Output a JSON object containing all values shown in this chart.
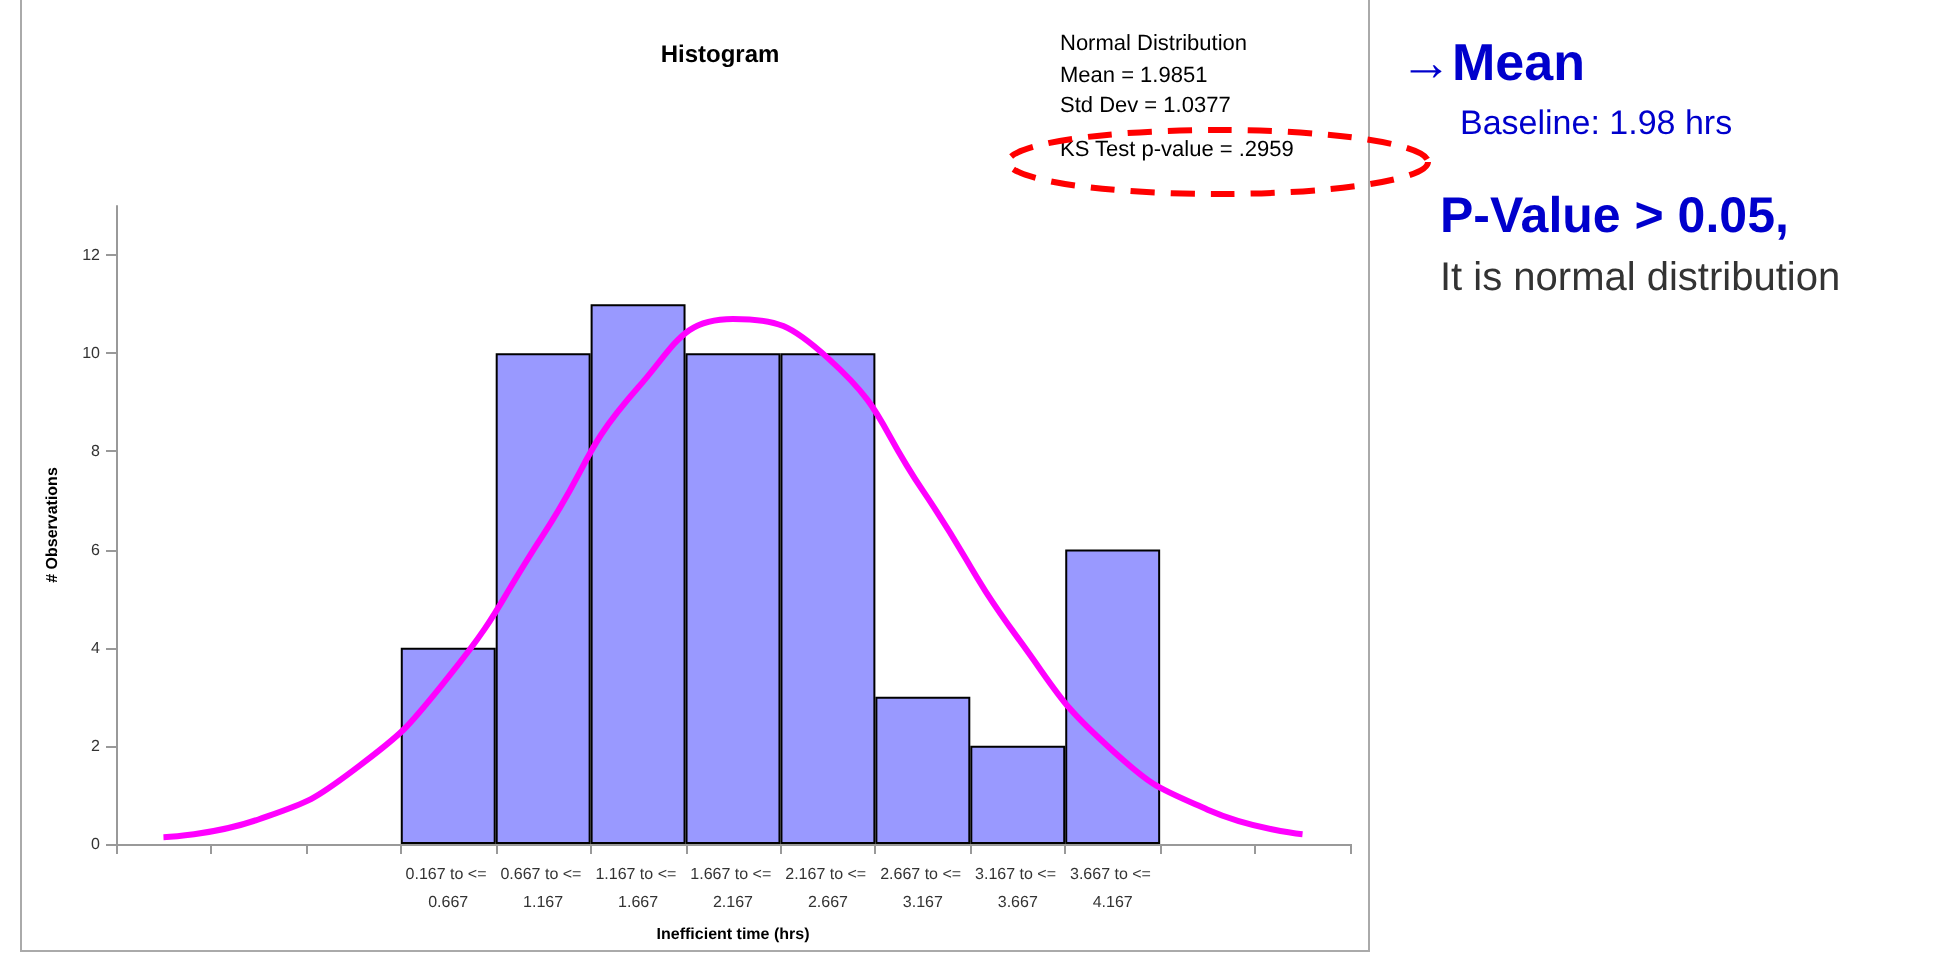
{
  "chart_data": {
    "type": "bar",
    "title": "Histogram",
    "xlabel": "Inefficient time (hrs)",
    "ylabel": "# Observations",
    "categories": [
      null,
      null,
      null,
      "0.167 to <= 0.667",
      "0.667 to <= 1.167",
      "1.167 to <= 1.667",
      "1.667 to <= 2.167",
      "2.167 to <= 2.667",
      "2.667 to <= 3.167",
      "3.167 to <= 3.667",
      "3.667 to <= 4.167",
      null,
      null
    ],
    "series": [
      {
        "color": "#9999ff",
        "values": [
          null,
          null,
          null,
          4,
          10,
          11,
          10,
          10,
          3,
          2,
          6,
          null,
          null
        ]
      },
      {
        "type": "line",
        "color": "#ff00ff",
        "values": [
          0.14,
          0.5,
          1.5,
          3.4,
          6.3,
          9.3,
          10.7,
          9.9,
          7.2,
          4.2,
          1.9,
          0.7,
          0.2
        ]
      }
    ],
    "ylim": [
      0,
      13
    ],
    "yticks": [
      0,
      2,
      4,
      6,
      8,
      10,
      12
    ],
    "grid": false,
    "marker": "none",
    "line_style": "solid",
    "annotations": [
      "Normal Distribution",
      "Mean = 1.9851",
      "Std Dev = 1.0377",
      "KS Test p-value = .2959",
      "→Mean",
      "Baseline: 1.98 hrs",
      "P-Value > 0.05,",
      "It is normal distribution"
    ]
  }
}
